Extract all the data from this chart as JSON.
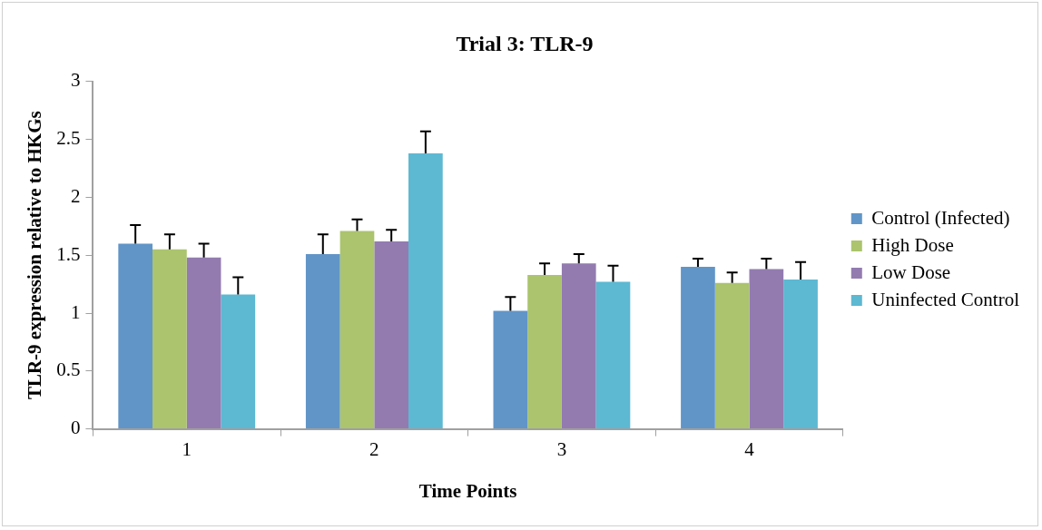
{
  "chart_data": {
    "type": "bar",
    "title": "Trial 3: TLR-9",
    "xlabel": "Time Points",
    "ylabel": "TLR-9 expression relative to HKGs",
    "categories": [
      "1",
      "2",
      "3",
      "4"
    ],
    "series": [
      {
        "name": "Control (Infected)",
        "color": "#6195c8",
        "values": [
          1.6,
          1.51,
          1.02,
          1.4
        ],
        "errors": [
          [
            1.6,
            1.76
          ],
          [
            1.51,
            1.68
          ],
          [
            1.02,
            1.14
          ],
          [
            1.4,
            1.47
          ]
        ]
      },
      {
        "name": "High Dose",
        "color": "#abc46d",
        "values": [
          1.55,
          1.71,
          1.33,
          1.26
        ],
        "errors": [
          [
            1.55,
            1.68
          ],
          [
            1.71,
            1.81
          ],
          [
            1.33,
            1.43
          ],
          [
            1.26,
            1.35
          ]
        ]
      },
      {
        "name": "Low Dose",
        "color": "#937bb0",
        "values": [
          1.48,
          1.62,
          1.43,
          1.38
        ],
        "errors": [
          [
            1.48,
            1.6
          ],
          [
            1.62,
            1.72
          ],
          [
            1.43,
            1.51
          ],
          [
            1.38,
            1.47
          ]
        ]
      },
      {
        "name": "Uninfected Control",
        "color": "#5db8d2",
        "values": [
          1.16,
          2.38,
          1.27,
          1.29
        ],
        "errors": [
          [
            1.16,
            1.31
          ],
          [
            2.38,
            2.57
          ],
          [
            1.27,
            1.41
          ],
          [
            1.29,
            1.44
          ]
        ]
      }
    ],
    "ylim": [
      0,
      3
    ],
    "yticks": [
      0,
      0.5,
      1,
      1.5,
      2,
      2.5,
      3
    ],
    "grid": false,
    "legend": "right"
  }
}
